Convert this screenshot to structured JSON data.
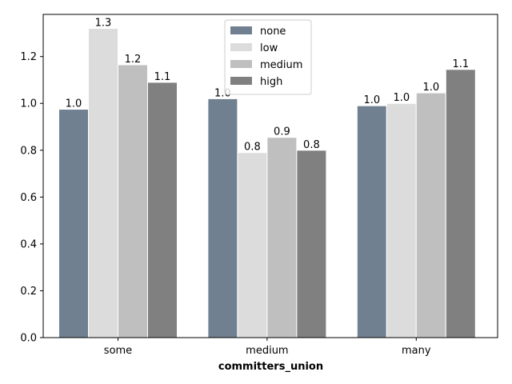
{
  "chart_data": {
    "type": "bar",
    "categories": [
      "some",
      "medium",
      "many"
    ],
    "series": [
      {
        "name": "none",
        "color": "#708090",
        "values": [
          0.975,
          1.02,
          0.99
        ]
      },
      {
        "name": "low",
        "color": "#dcdcdc",
        "values": [
          1.32,
          0.79,
          1.0
        ]
      },
      {
        "name": "medium",
        "color": "#bfbfbf",
        "values": [
          1.165,
          0.855,
          1.045
        ]
      },
      {
        "name": "high",
        "color": "#808080",
        "values": [
          1.09,
          0.8,
          1.145
        ]
      }
    ],
    "data_labels": [
      [
        "1.0",
        "1.0",
        "1.0"
      ],
      [
        "1.3",
        "0.8",
        "1.0"
      ],
      [
        "1.2",
        "0.9",
        "1.0"
      ],
      [
        "1.1",
        "0.8",
        "1.1"
      ]
    ],
    "title": "",
    "xlabel": "committers_union",
    "ylabel": "",
    "ylim": [
      0,
      1.38
    ],
    "yticks": [
      "0.0",
      "0.2",
      "0.4",
      "0.6",
      "0.8",
      "1.0",
      "1.2"
    ],
    "yticks_values": [
      0,
      0.2,
      0.4,
      0.6,
      0.8,
      1.0,
      1.2
    ],
    "grid": false,
    "legend_position": "top-center"
  }
}
